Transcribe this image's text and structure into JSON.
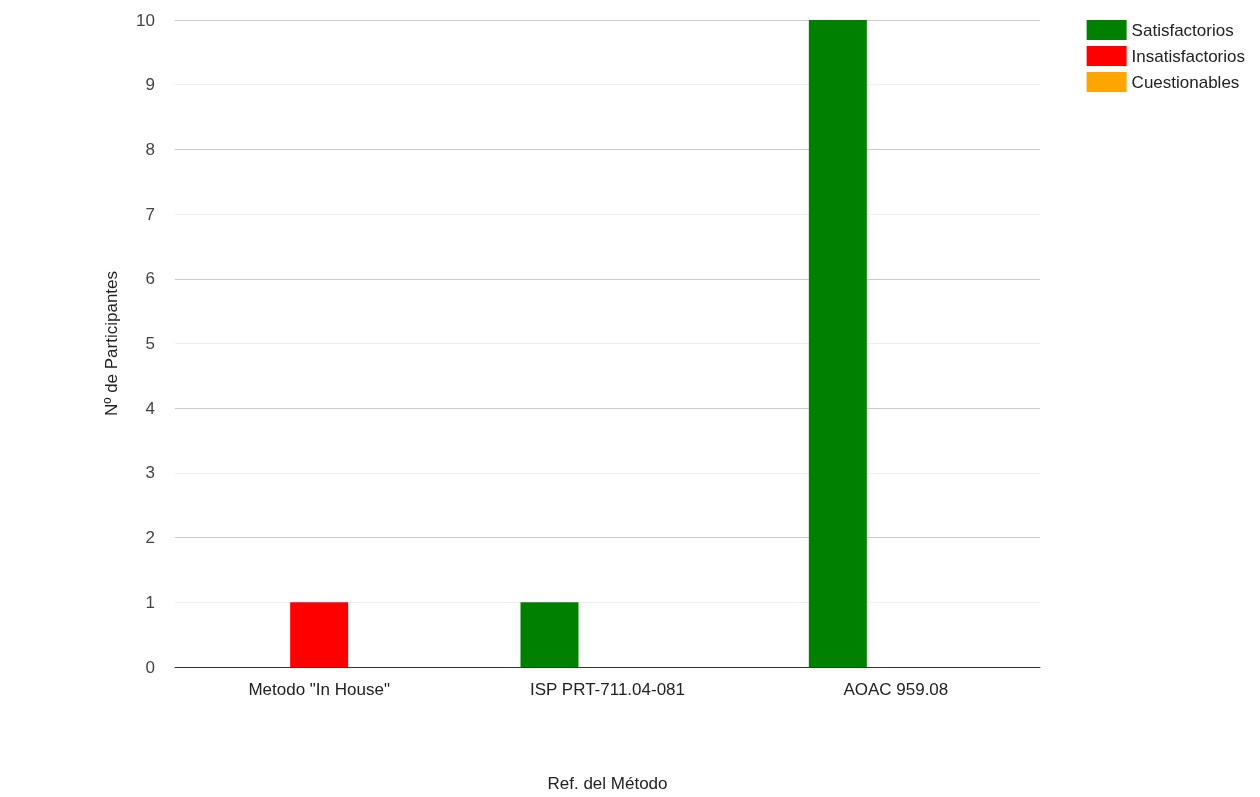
{
  "chart_data": {
    "type": "bar",
    "xlabel": "Ref. del Método",
    "ylabel": "Nº de Participantes",
    "categories": [
      "Metodo \"In House\"",
      "ISP PRT-711.04-081",
      "AOAC 959.08"
    ],
    "series": [
      {
        "name": "Satisfactorios",
        "color": "#008000",
        "values": [
          0,
          1,
          10
        ]
      },
      {
        "name": "Insatisfactorios",
        "color": "#ff0000",
        "values": [
          1,
          0,
          0
        ]
      },
      {
        "name": "Cuestionables",
        "color": "#ffa500",
        "values": [
          0,
          0,
          0
        ]
      }
    ],
    "ylim": [
      0,
      10
    ],
    "yticks": [
      0,
      1,
      2,
      3,
      4,
      5,
      6,
      7,
      8,
      9,
      10
    ],
    "grid": "y",
    "legend": "top right"
  }
}
